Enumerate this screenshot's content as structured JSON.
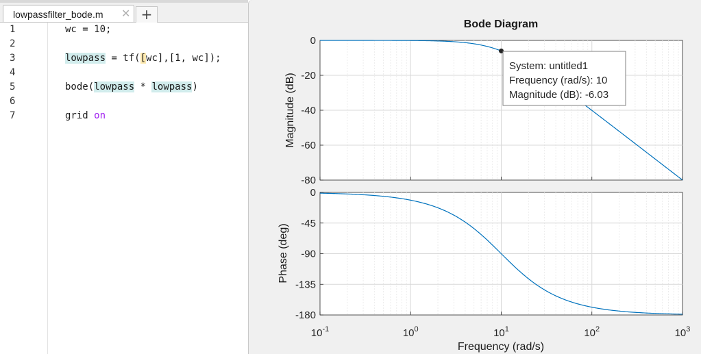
{
  "editor": {
    "tab_label": "lowpassfilter_bode.m",
    "close_glyph": "✕",
    "new_tab_glyph": "+",
    "lines": [
      {
        "num": "1",
        "code": "wc = 10;"
      },
      {
        "num": "2",
        "code": ""
      },
      {
        "num": "3",
        "code": "lowpass = tf([wc],[1, wc]);"
      },
      {
        "num": "4",
        "code": ""
      },
      {
        "num": "5",
        "code": "bode(lowpass * lowpass)"
      },
      {
        "num": "6",
        "code": ""
      },
      {
        "num": "7",
        "code": "grid on"
      }
    ]
  },
  "figure": {
    "title": "Bode Diagram",
    "magnitude_ylabel": "Magnitude (dB)",
    "phase_ylabel": "Phase (deg)",
    "xlabel": "Frequency  (rad/s)",
    "curve_color": "#0072bd",
    "datatip": {
      "line1": "System: untitled1",
      "line2": "Frequency (rad/s): 10",
      "line3": "Magnitude (dB): -6.03"
    }
  },
  "chart_data": [
    {
      "type": "line",
      "name": "magnitude",
      "xscale": "log",
      "xlim": [
        0.1,
        1000
      ],
      "ylim": [
        -80,
        0
      ],
      "yticks": [
        0,
        -20,
        -40,
        -60,
        -80
      ],
      "grid": true,
      "series": [
        {
          "formula": "-20*log10(1+(w/10)^2)",
          "wc": 10
        }
      ],
      "datatip": {
        "x": 10,
        "y": -6.03
      }
    },
    {
      "type": "line",
      "name": "phase",
      "xscale": "log",
      "xlim": [
        0.1,
        1000
      ],
      "ylim": [
        -180,
        0
      ],
      "yticks": [
        0,
        -45,
        -90,
        -135,
        -180
      ],
      "xticks": [
        0.1,
        1,
        10,
        100,
        1000
      ],
      "xtick_labels": [
        {
          "base": "10",
          "exp": "-1"
        },
        {
          "base": "10",
          "exp": "0"
        },
        {
          "base": "10",
          "exp": "1"
        },
        {
          "base": "10",
          "exp": "2"
        },
        {
          "base": "10",
          "exp": "3"
        }
      ],
      "grid": true,
      "series": [
        {
          "formula": "-2*atan(w/10)",
          "wc": 10
        }
      ]
    }
  ]
}
